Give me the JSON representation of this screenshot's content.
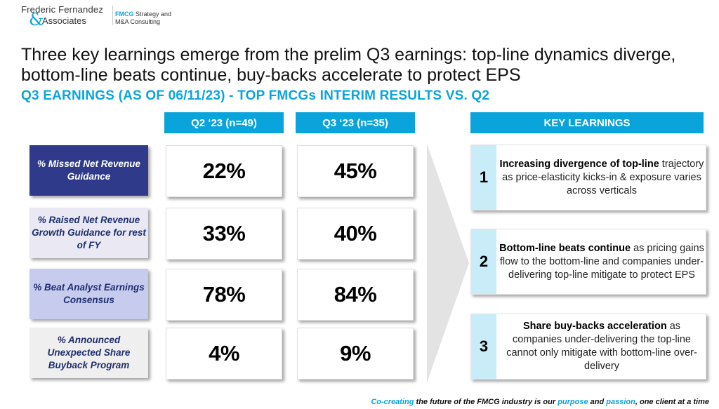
{
  "logo": {
    "name": "Frederic Fernandez",
    "ampersand": "&",
    "associates": "Associates",
    "tagline_bold": "FMCG",
    "tagline_rest": " Strategy and",
    "tagline_line2": "M&A Consulting"
  },
  "title": "Three key learnings emerge from the prelim Q3 earnings: top-line dynamics diverge, bottom-line beats continue, buy-backs accelerate to protect EPS",
  "subtitle": "Q3 EARNINGS (AS OF 06/11/23) - TOP FMCGs INTERIM RESULTS VS. Q2",
  "columns": {
    "q2": "Q2 ‘23 (n=49)",
    "q3": "Q3 ‘23  (n=35)"
  },
  "rows": [
    {
      "label": "% Missed Net Revenue Guidance",
      "q2": "22%",
      "q3": "45%",
      "bg": "#2f3a8a",
      "fg": "#ffffff"
    },
    {
      "label": "% Raised Net Revenue Growth Guidance for rest of FY",
      "q2": "33%",
      "q3": "40%",
      "bg": "#e9e8f3",
      "fg": "#1f2f6e"
    },
    {
      "label": "% Beat Analyst Earnings Consensus",
      "q2": "78%",
      "q3": "84%",
      "bg": "#c7cbee",
      "fg": "#1f2f6e"
    },
    {
      "label": "% Announced Unexpected Share Buyback Program",
      "q2": "4%",
      "q3": "9%",
      "bg": "#efefef",
      "fg": "#1f2f6e"
    }
  ],
  "key_learnings": {
    "header": "KEY LEARNINGS",
    "items": [
      {
        "num": "1",
        "bold": "Increasing divergence of top-line",
        "rest": " trajectory as price-elasticity kicks-in & exposure varies across verticals"
      },
      {
        "num": "2",
        "bold": "Bottom-line beats continue",
        "rest": " as pricing gains flow to the bottom-line and companies under-delivering top-line mitigate to protect EPS"
      },
      {
        "num": "3",
        "bold": "Share buy-backs acceleration",
        "rest": " as companies under-delivering the top-line cannot only mitigate with bottom-line over-delivery"
      }
    ]
  },
  "footer": {
    "p1": "Co-creating",
    "p2": " the future of the FMCG industry is our ",
    "p3": "purpose",
    "p4": " and ",
    "p5": "passion",
    "p6": ", one client at a time"
  },
  "colors": {
    "accent": "#0aa4dc",
    "light_accent": "#c8ecf8",
    "arrow": "#e3e3e3"
  }
}
